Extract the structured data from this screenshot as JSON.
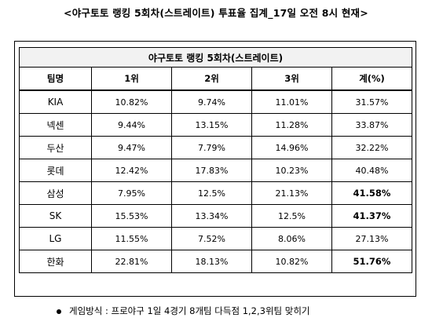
{
  "title": "<야구토토 랭킹 5회차(스트레이트) 투표율 집계_17일 오전 8시 현재>",
  "table": {
    "header": "야구토토 랭킹 5회차(스트레이트)",
    "columns": [
      "팀명",
      "1위",
      "2위",
      "3위",
      "계(%)"
    ],
    "rows": [
      {
        "team": "KIA",
        "p1": "10.82%",
        "p2": "9.74%",
        "p3": "11.01%",
        "total": "31.57%",
        "highlight": false
      },
      {
        "team": "넥센",
        "p1": "9.44%",
        "p2": "13.15%",
        "p3": "11.28%",
        "total": "33.87%",
        "highlight": false
      },
      {
        "team": "두산",
        "p1": "9.47%",
        "p2": "7.79%",
        "p3": "14.96%",
        "total": "32.22%",
        "highlight": false
      },
      {
        "team": "롯데",
        "p1": "12.42%",
        "p2": "17.83%",
        "p3": "10.23%",
        "total": "40.48%",
        "highlight": false
      },
      {
        "team": "삼성",
        "p1": "7.95%",
        "p2": "12.5%",
        "p3": "21.13%",
        "total": "41.58%",
        "highlight": true
      },
      {
        "team": "SK",
        "p1": "15.53%",
        "p2": "13.34%",
        "p3": "12.5%",
        "total": "41.37%",
        "highlight": true
      },
      {
        "team": "LG",
        "p1": "11.55%",
        "p2": "7.52%",
        "p3": "8.06%",
        "total": "27.13%",
        "highlight": false
      },
      {
        "team": "한화",
        "p1": "22.81%",
        "p2": "18.13%",
        "p3": "10.82%",
        "total": "51.76%",
        "highlight": true
      }
    ]
  },
  "note": "게임방식 : 프로야구 1일 4경기 8개팀 다득점 1,2,3위팀 맞히기"
}
